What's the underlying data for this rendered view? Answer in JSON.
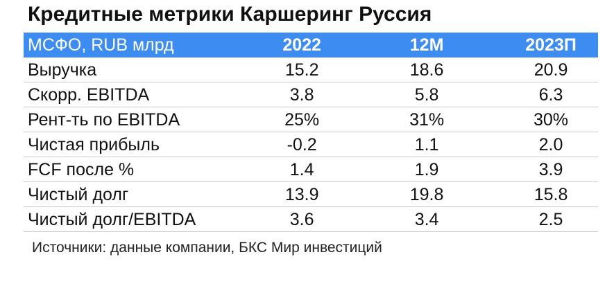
{
  "title": "Кредитные метрики Каршеринг Руссия",
  "table": {
    "header": {
      "label": "МСФО, RUB млрд",
      "columns": [
        "2022",
        "12M",
        "2023П"
      ]
    },
    "rows": [
      {
        "label": "Выручка",
        "values": [
          "15.2",
          "18.6",
          "20.9"
        ]
      },
      {
        "label": "Скорр. EBITDA",
        "values": [
          "3.8",
          "5.8",
          "6.3"
        ]
      },
      {
        "label": "Рент-ть по EBITDA",
        "values": [
          "25%",
          "31%",
          "30%"
        ]
      },
      {
        "label": "Чистая прибыль",
        "values": [
          "-0.2",
          "1.1",
          "2.0"
        ]
      },
      {
        "label": "FCF после %",
        "values": [
          "1.4",
          "1.9",
          "3.9"
        ]
      },
      {
        "label": "Чистый долг",
        "values": [
          "13.9",
          "19.8",
          "15.8"
        ]
      },
      {
        "label": "Чистый долг/EBITDA",
        "values": [
          "3.6",
          "3.4",
          "2.5"
        ]
      }
    ]
  },
  "source": "Источники: данные компании, БКС Мир инвестиций",
  "colors": {
    "header_bg": "#3d8cf2",
    "header_text": "#ffffff",
    "divider": "#c9c9c9"
  }
}
